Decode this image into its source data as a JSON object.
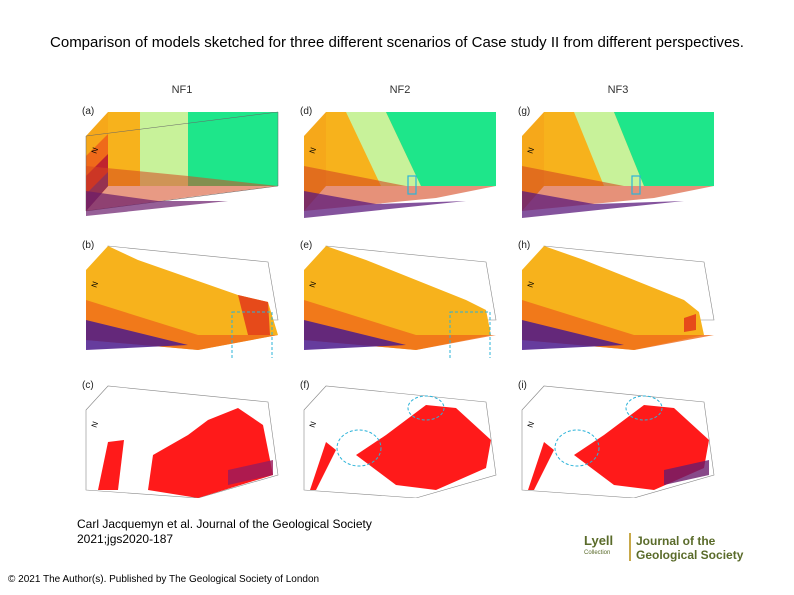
{
  "title": "Comparison of models sketched for three different scenarios of Case study II from different perspectives.",
  "figure": {
    "columns": [
      "NF1",
      "NF2",
      "NF3"
    ],
    "panel_labels": [
      "(a)",
      "(d)",
      "(g)",
      "(b)",
      "(e)",
      "(h)",
      "(c)",
      "(f)",
      "(i)"
    ],
    "north_label": "N"
  },
  "citation": {
    "line1": "Carl Jacquemyn et al. Journal of the Geological Society",
    "line2": "2021;jgs2020-187"
  },
  "copyright": "© 2021 The Author(s). Published by The Geological Society of London",
  "logo": {
    "lyell": "Lyell",
    "collection": "Collection",
    "journal_line1": "Journal of the",
    "journal_line2": "Geological Society"
  },
  "colors": {
    "orange": "#f7b21c",
    "light_green": "#c8f29a",
    "green": "#1ee68a",
    "red": "#ff1a1a",
    "purple": "#4b1a8c",
    "dashed_cyan": "#2bb3d9"
  }
}
